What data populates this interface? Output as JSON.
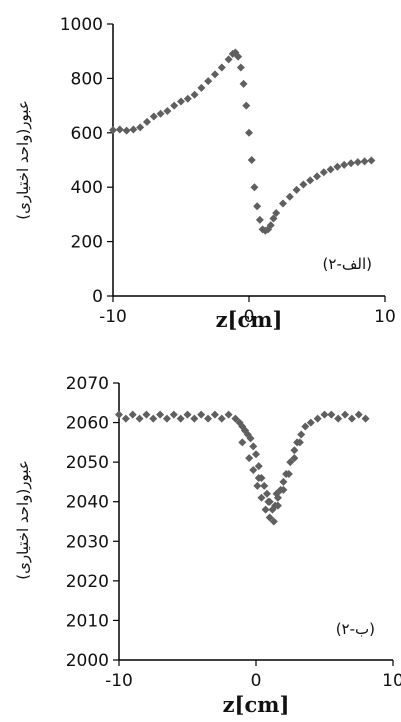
{
  "colors": {
    "marker": "#5f5f5f",
    "axis": "#000000",
    "text": "#111111"
  },
  "chart_data": [
    {
      "type": "scatter",
      "panel_label": "(۲-الف)",
      "xlabel": "z[cm]",
      "ylabel": "عبور(واحد اختیاری)",
      "xlim": [
        -10,
        10
      ],
      "ylim": [
        0,
        1000
      ],
      "x_ticks": [
        "-10",
        "0",
        "10"
      ],
      "y_ticks": [
        "0",
        "200",
        "400",
        "600",
        "800",
        "1000"
      ],
      "grid": false,
      "x": [
        -10,
        -9.5,
        -9,
        -8.5,
        -8,
        -7.5,
        -7,
        -6.5,
        -6,
        -5.5,
        -5,
        -4.5,
        -4,
        -3.5,
        -3,
        -2.5,
        -2,
        -1.5,
        -1.2,
        -1,
        -0.8,
        -0.6,
        -0.4,
        -0.2,
        0,
        0.2,
        0.4,
        0.6,
        0.8,
        1,
        1.2,
        1.4,
        1.6,
        1.8,
        2,
        2.5,
        3,
        3.5,
        4,
        4.5,
        5,
        5.5,
        6,
        6.5,
        7,
        7.5,
        8,
        8.5,
        9
      ],
      "y": [
        610,
        612,
        608,
        612,
        620,
        640,
        660,
        670,
        680,
        700,
        715,
        725,
        740,
        765,
        790,
        815,
        840,
        870,
        890,
        895,
        880,
        840,
        780,
        700,
        600,
        500,
        400,
        330,
        280,
        245,
        240,
        245,
        260,
        285,
        305,
        340,
        365,
        390,
        410,
        425,
        440,
        455,
        465,
        475,
        482,
        488,
        492,
        495,
        498
      ]
    },
    {
      "type": "scatter",
      "panel_label": "(۲-ب)",
      "xlabel": "z[cm]",
      "ylabel": "عبور(واحد اختیاری)",
      "xlim": [
        -10,
        10
      ],
      "ylim": [
        2000,
        2070
      ],
      "x_ticks": [
        "-10",
        "0",
        "10"
      ],
      "y_ticks": [
        "2000",
        "2010",
        "2020",
        "2030",
        "2040",
        "2050",
        "2060",
        "2070"
      ],
      "grid": false,
      "x": [
        -10,
        -9.5,
        -9,
        -8.5,
        -8,
        -7.5,
        -7,
        -6.5,
        -6,
        -5.5,
        -5,
        -4.5,
        -4,
        -3.5,
        -3,
        -2.5,
        -2,
        -1.5,
        -1.2,
        -1,
        -0.8,
        -0.6,
        -0.4,
        -0.2,
        0,
        0.2,
        0.4,
        0.6,
        0.8,
        1,
        1.2,
        1.4,
        1.6,
        1.8,
        2,
        2.2,
        2.5,
        2.8,
        3,
        3.3,
        3.6,
        4,
        4.5,
        5,
        5.5,
        6,
        6.5,
        7,
        7.5,
        8,
        -1,
        -0.5,
        -0.2,
        0.1,
        0.4,
        0.7,
        1,
        1.3,
        1.6,
        2,
        2.4,
        2.8,
        3.2,
        -0.8,
        0.2,
        0.9,
        1.5
      ],
      "y": [
        2062,
        2061,
        2062,
        2061,
        2062,
        2061,
        2062,
        2061,
        2062,
        2061,
        2062,
        2061,
        2062,
        2061,
        2062,
        2061,
        2062,
        2061,
        2060,
        2059,
        2058,
        2057,
        2056,
        2054,
        2052,
        2049,
        2046,
        2044,
        2042,
        2040,
        2038,
        2039,
        2041,
        2043,
        2045,
        2047,
        2050,
        2053,
        2055,
        2057,
        2059,
        2060,
        2061,
        2062,
        2062,
        2061,
        2062,
        2061,
        2062,
        2061,
        2055,
        2051,
        2048,
        2044,
        2041,
        2038,
        2036,
        2035,
        2039,
        2043,
        2047,
        2051,
        2055,
        2058,
        2046,
        2040,
        2042
      ]
    }
  ]
}
